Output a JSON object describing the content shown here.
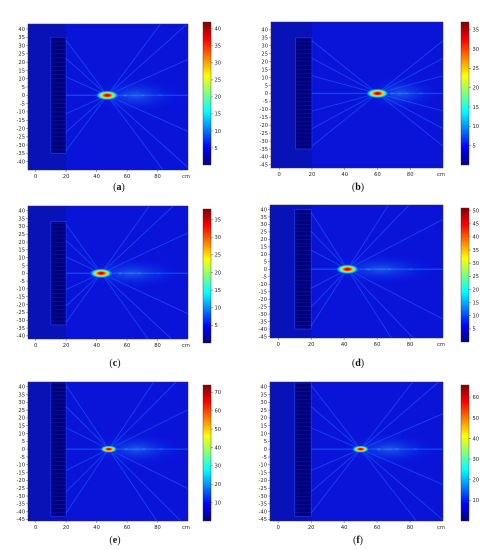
{
  "chart_data": [
    {
      "type": "heatmap",
      "caption": "(a)",
      "x_ticks": [
        "0",
        "20",
        "40",
        "60",
        "80"
      ],
      "x_unit": "cm",
      "y_ticks": [
        "40",
        "35",
        "30",
        "25",
        "20",
        "15",
        "10",
        "5",
        "0",
        "-5",
        "-10",
        "-15",
        "-20",
        "-25",
        "-30",
        "-35",
        "-40"
      ],
      "xlim": [
        -5,
        100
      ],
      "ylim": [
        -45,
        43
      ],
      "colorbar_ticks": [
        "40",
        "35",
        "30",
        "25",
        "20",
        "15",
        "10",
        "5"
      ],
      "colorbar_range": [
        0,
        42
      ],
      "focus": {
        "x": 47,
        "y": 0,
        "peak": 40
      },
      "lens_region": {
        "x0": 10,
        "x1": 20,
        "y0": -35,
        "y1": 35
      }
    },
    {
      "type": "heatmap",
      "caption": "(b)",
      "x_ticks": [
        "0",
        "20",
        "40",
        "60",
        "80"
      ],
      "x_unit": "cm",
      "y_ticks": [
        "40",
        "35",
        "30",
        "25",
        "20",
        "15",
        "10",
        "5",
        "0",
        "-5",
        "-10",
        "-15",
        "-20",
        "-25",
        "-30",
        "-35",
        "-40",
        "-45"
      ],
      "xlim": [
        -5,
        100
      ],
      "ylim": [
        -47,
        45
      ],
      "colorbar_ticks": [
        "35",
        "30",
        "25",
        "20",
        "15",
        "10",
        "5"
      ],
      "colorbar_range": [
        0,
        37
      ],
      "focus": {
        "x": 60,
        "y": 0,
        "peak": 35
      },
      "lens_region": {
        "x0": 10,
        "x1": 20,
        "y0": -35,
        "y1": 35
      }
    },
    {
      "type": "heatmap",
      "caption": "(c)",
      "x_ticks": [
        "0",
        "20",
        "40",
        "60",
        "80"
      ],
      "x_unit": "cm",
      "y_ticks": [
        "40",
        "35",
        "30",
        "25",
        "20",
        "15",
        "10",
        "5",
        "0",
        "-5",
        "-10",
        "-15",
        "-20",
        "-25",
        "-30",
        "-35",
        "-40"
      ],
      "xlim": [
        -5,
        100
      ],
      "ylim": [
        -42,
        43
      ],
      "colorbar_ticks": [
        "35",
        "30",
        "25",
        "20",
        "15",
        "10",
        "5"
      ],
      "colorbar_range": [
        0,
        38
      ],
      "focus": {
        "x": 43,
        "y": 0,
        "peak": 35
      },
      "lens_region": {
        "x0": 10,
        "x1": 20,
        "y0": -33,
        "y1": 33
      }
    },
    {
      "type": "heatmap",
      "caption": "(d)",
      "x_ticks": [
        "0",
        "20",
        "40",
        "60",
        "80"
      ],
      "x_unit": "cm",
      "y_ticks": [
        "40",
        "35",
        "30",
        "25",
        "20",
        "15",
        "10",
        "5",
        "0",
        "-5",
        "-10",
        "-15",
        "-20",
        "-25",
        "-30",
        "-35",
        "-40",
        "-45"
      ],
      "xlim": [
        -5,
        100
      ],
      "ylim": [
        -46,
        43
      ],
      "colorbar_ticks": [
        "50",
        "45",
        "40",
        "35",
        "30",
        "25",
        "20",
        "15",
        "10",
        "5"
      ],
      "colorbar_range": [
        0,
        51
      ],
      "focus": {
        "x": 42,
        "y": 0,
        "peak": 50
      },
      "lens_region": {
        "x0": 10,
        "x1": 20,
        "y0": -40,
        "y1": 40
      }
    },
    {
      "type": "heatmap",
      "caption": "(e)",
      "x_ticks": [
        "0",
        "20",
        "40",
        "60",
        "80"
      ],
      "x_unit": "cm",
      "y_ticks": [
        "40",
        "35",
        "30",
        "25",
        "20",
        "15",
        "10",
        "5",
        "0",
        "-5",
        "-10",
        "-15",
        "-20",
        "-25",
        "-30",
        "-35",
        "-40",
        "-45"
      ],
      "xlim": [
        -5,
        100
      ],
      "ylim": [
        -46,
        43
      ],
      "colorbar_ticks": [
        "70",
        "60",
        "50",
        "40",
        "30",
        "20",
        "10"
      ],
      "colorbar_range": [
        0,
        74
      ],
      "focus": {
        "x": 48,
        "y": 0,
        "peak": 70
      },
      "lens_region": {
        "x0": 10,
        "x1": 20,
        "y0": -43,
        "y1": 43
      }
    },
    {
      "type": "heatmap",
      "caption": "(f)",
      "x_ticks": [
        "0",
        "20",
        "40",
        "60",
        "80"
      ],
      "x_unit": "cm",
      "y_ticks": [
        "40",
        "35",
        "30",
        "25",
        "20",
        "15",
        "10",
        "5",
        "0",
        "-5",
        "-10",
        "-15",
        "-20",
        "-25",
        "-30",
        "-35",
        "-40",
        "-45"
      ],
      "xlim": [
        -5,
        100
      ],
      "ylim": [
        -46,
        43
      ],
      "colorbar_ticks": [
        "60",
        "50",
        "40",
        "30",
        "20",
        "10"
      ],
      "colorbar_range": [
        0,
        66
      ],
      "focus": {
        "x": 50,
        "y": 0,
        "peak": 60
      },
      "lens_region": {
        "x0": 10,
        "x1": 20,
        "y0": -43,
        "y1": 43
      }
    }
  ]
}
